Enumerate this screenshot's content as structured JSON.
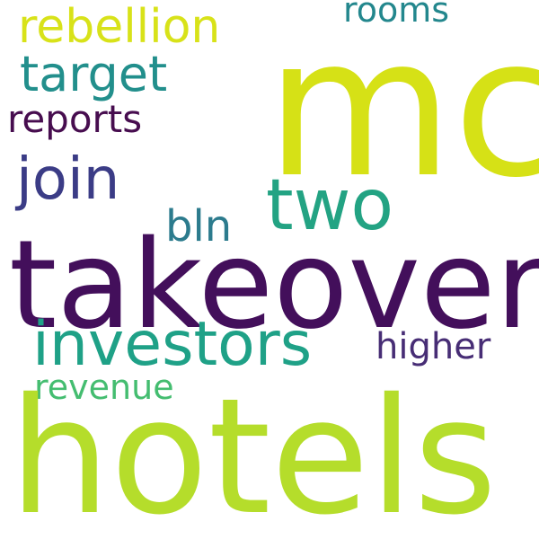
{
  "words": {
    "mc": {
      "text": "mc",
      "color": "#d6e116"
    },
    "takeover": {
      "text": "takeover",
      "color": "#430f5b"
    },
    "hotels": {
      "text": "hotels",
      "color": "#b5dd2b"
    },
    "investors": {
      "text": "investors",
      "color": "#1fa187"
    },
    "two": {
      "text": "two",
      "color": "#23a383"
    },
    "join": {
      "text": "join",
      "color": "#3b3c86"
    },
    "rebellion": {
      "text": "rebellion",
      "color": "#d8e219"
    },
    "target": {
      "text": "target",
      "color": "#228f8c"
    },
    "reports": {
      "text": "reports",
      "color": "#470d4f"
    },
    "rooms": {
      "text": "rooms",
      "color": "#23878d"
    },
    "bln": {
      "text": "bln",
      "color": "#2c7b8d"
    },
    "higher": {
      "text": "higher",
      "color": "#472d75"
    },
    "revenue": {
      "text": "revenue",
      "color": "#44bd70"
    }
  }
}
